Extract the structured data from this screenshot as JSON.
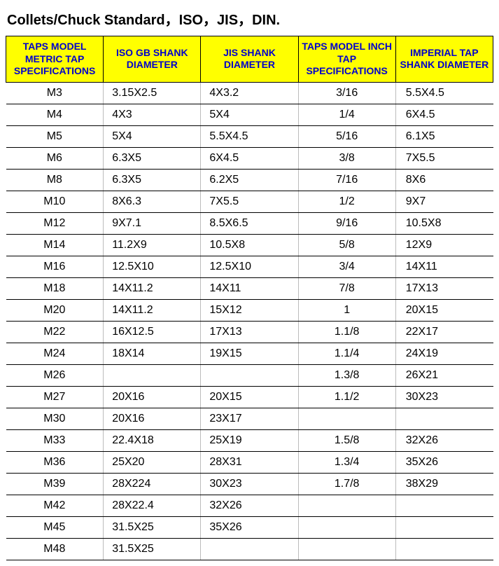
{
  "title": "Collets/Chuck Standard，ISO，JIS，DIN.",
  "table": {
    "type": "table",
    "header_bg": "#ffff00",
    "header_color": "#0000cc",
    "text_color": "#000000",
    "border_color": "#000000",
    "cell_border_color": "#bbbbbb",
    "header_fontsize": 14,
    "cell_fontsize": 16,
    "col_align": [
      "center",
      "left",
      "left",
      "center",
      "left"
    ],
    "columns": [
      "TAPS MODEL METRIC TAP SPECIFICATIONS",
      "ISO GB SHANK DIAMETER",
      "JIS SHANK DIAMETER",
      "TAPS MODEL INCH TAP SPECIFICATIONS",
      "IMPERIAL TAP SHANK DIAMETER"
    ],
    "rows": [
      [
        "M3",
        "3.15X2.5",
        "4X3.2",
        "3/16",
        "5.5X4.5"
      ],
      [
        "M4",
        "4X3",
        "5X4",
        "1/4",
        "6X4.5"
      ],
      [
        "M5",
        "5X4",
        "5.5X4.5",
        "5/16",
        "6.1X5"
      ],
      [
        "M6",
        "6.3X5",
        "6X4.5",
        "3/8",
        "7X5.5"
      ],
      [
        "M8",
        "6.3X5",
        "6.2X5",
        "7/16",
        "8X6"
      ],
      [
        "M10",
        "8X6.3",
        "7X5.5",
        "1/2",
        "9X7"
      ],
      [
        "M12",
        "9X7.1",
        "8.5X6.5",
        "9/16",
        "10.5X8"
      ],
      [
        "M14",
        "11.2X9",
        "10.5X8",
        "5/8",
        "12X9"
      ],
      [
        "M16",
        "12.5X10",
        "12.5X10",
        "3/4",
        "14X11"
      ],
      [
        "M18",
        "14X11.2",
        "14X11",
        "7/8",
        "17X13"
      ],
      [
        "M20",
        "14X11.2",
        "15X12",
        "1",
        "20X15"
      ],
      [
        "M22",
        "16X12.5",
        "17X13",
        "1.1/8",
        "22X17"
      ],
      [
        "M24",
        "18X14",
        "19X15",
        "1.1/4",
        "24X19"
      ],
      [
        "M26",
        "",
        "",
        "1.3/8",
        "26X21"
      ],
      [
        "M27",
        "20X16",
        "20X15",
        "1.1/2",
        "30X23"
      ],
      [
        "M30",
        "20X16",
        "23X17",
        "",
        ""
      ],
      [
        "M33",
        "22.4X18",
        "25X19",
        "1.5/8",
        "32X26"
      ],
      [
        "M36",
        "25X20",
        "28X31",
        "1.3/4",
        "35X26"
      ],
      [
        "M39",
        "28X224",
        "30X23",
        "1.7/8",
        "38X29"
      ],
      [
        "M42",
        "28X22.4",
        "32X26",
        "",
        ""
      ],
      [
        "M45",
        "31.5X25",
        "35X26",
        "",
        ""
      ],
      [
        "M48",
        "31.5X25",
        "",
        "",
        ""
      ]
    ]
  }
}
